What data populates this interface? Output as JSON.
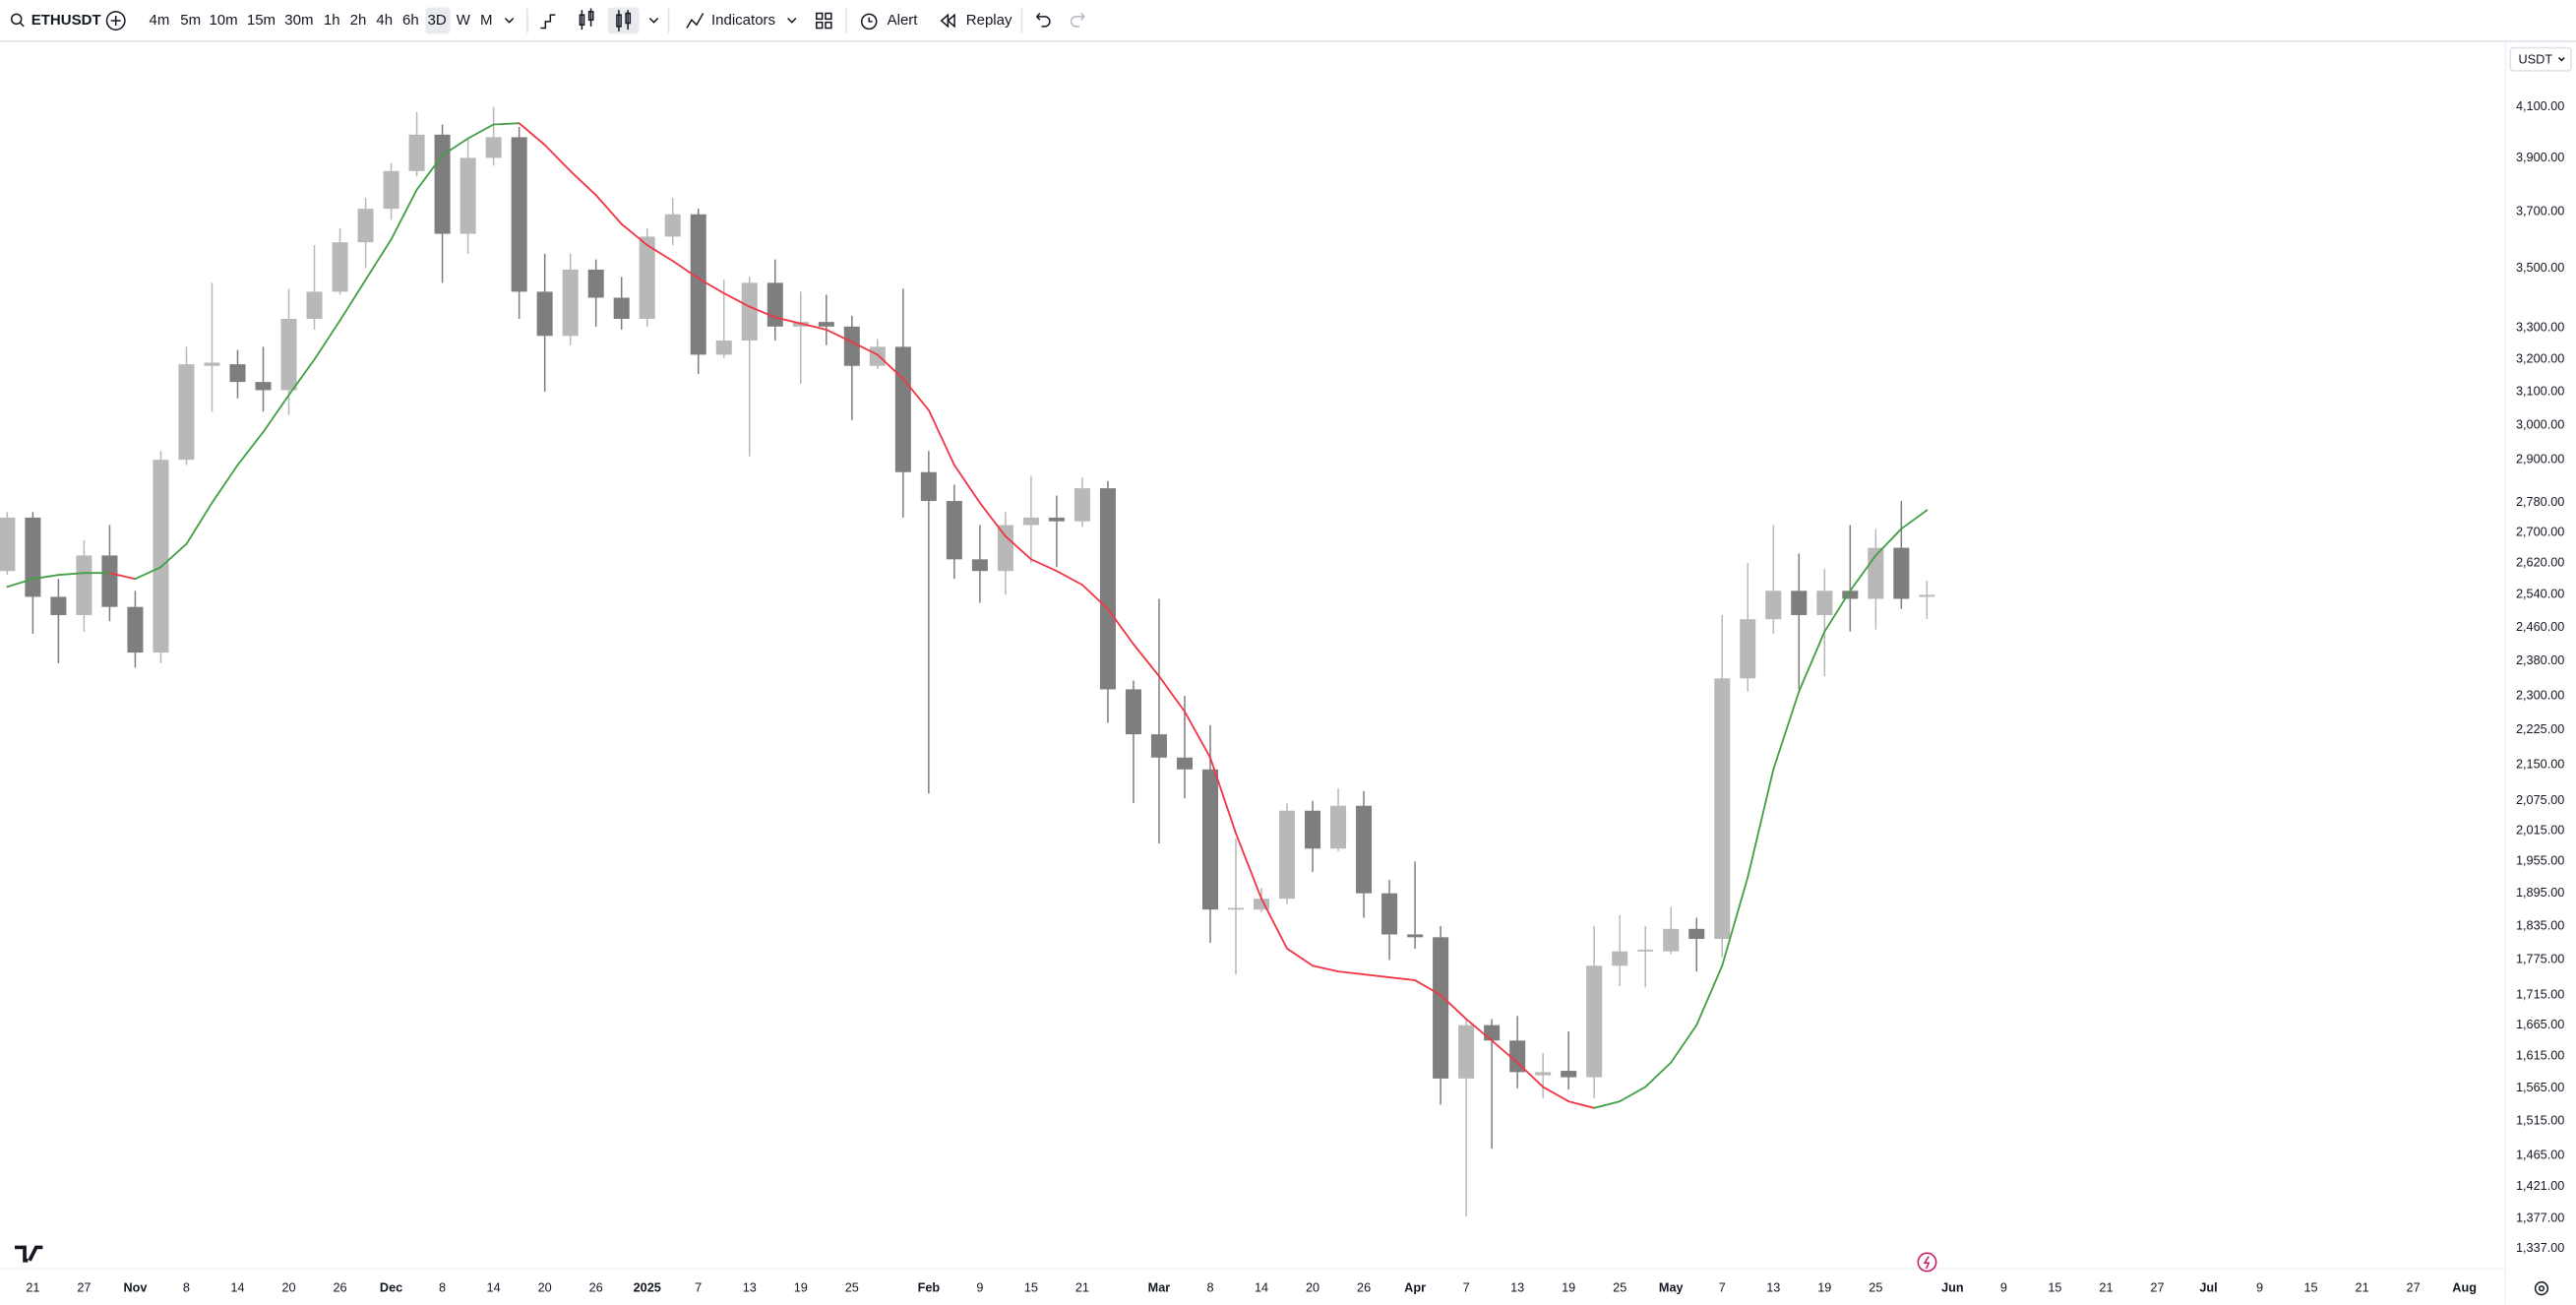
{
  "toolbar": {
    "symbol": "ETHUSDT",
    "intervals": [
      "4m",
      "5m",
      "10m",
      "15m",
      "30m",
      "1h",
      "2h",
      "4h",
      "6h",
      "3D",
      "W",
      "M"
    ],
    "indicators": "Indicators",
    "alert": "Alert",
    "replay": "Replay"
  },
  "currency": "USDT",
  "chart_data": {
    "type": "candlestick",
    "log_scale": true,
    "grid": false,
    "up_color": "#b8b8b8",
    "down_color": "#7e7e7e",
    "ma_up_color": "#43a047",
    "ma_down_color": "#f23645",
    "ylim": [
      1311,
      4352
    ],
    "yticks": [
      {
        "value": 4100,
        "label": "4,100.00"
      },
      {
        "value": 3900,
        "label": "3,900.00"
      },
      {
        "value": 3700,
        "label": "3,700.00"
      },
      {
        "value": 3500,
        "label": "3,500.00"
      },
      {
        "value": 3300,
        "label": "3,300.00"
      },
      {
        "value": 3200,
        "label": "3,200.00"
      },
      {
        "value": 3100,
        "label": "3,100.00"
      },
      {
        "value": 3000,
        "label": "3,000.00"
      },
      {
        "value": 2900,
        "label": "2,900.00"
      },
      {
        "value": 2780,
        "label": "2,780.00"
      },
      {
        "value": 2700,
        "label": "2,700.00"
      },
      {
        "value": 2620,
        "label": "2,620.00"
      },
      {
        "value": 2540,
        "label": "2,540.00"
      },
      {
        "value": 2460,
        "label": "2,460.00"
      },
      {
        "value": 2380,
        "label": "2,380.00"
      },
      {
        "value": 2300,
        "label": "2,300.00"
      },
      {
        "value": 2225,
        "label": "2,225.00"
      },
      {
        "value": 2150,
        "label": "2,150.00"
      },
      {
        "value": 2075,
        "label": "2,075.00"
      },
      {
        "value": 2015,
        "label": "2,015.00"
      },
      {
        "value": 1955,
        "label": "1,955.00"
      },
      {
        "value": 1895,
        "label": "1,895.00"
      },
      {
        "value": 1835,
        "label": "1,835.00"
      },
      {
        "value": 1775,
        "label": "1,775.00"
      },
      {
        "value": 1715,
        "label": "1,715.00"
      },
      {
        "value": 1665,
        "label": "1,665.00"
      },
      {
        "value": 1615,
        "label": "1,615.00"
      },
      {
        "value": 1565,
        "label": "1,565.00"
      },
      {
        "value": 1515,
        "label": "1,515.00"
      },
      {
        "value": 1465,
        "label": "1,465.00"
      },
      {
        "value": 1421,
        "label": "1,421.00"
      },
      {
        "value": 1377,
        "label": "1,377.00"
      },
      {
        "value": 1337,
        "label": "1,337.00"
      }
    ],
    "categories": [
      null,
      "21",
      null,
      "27",
      null,
      "Nov",
      null,
      "8",
      null,
      "14",
      null,
      "20",
      null,
      "26",
      null,
      "Dec",
      null,
      "8",
      null,
      "14",
      null,
      "20",
      null,
      "26",
      null,
      "2025",
      null,
      "7",
      null,
      "13",
      null,
      "19",
      null,
      "25",
      null,
      null,
      "Feb",
      null,
      "9",
      null,
      "15",
      null,
      "21",
      null,
      null,
      "Mar",
      null,
      "8",
      null,
      "14",
      null,
      "20",
      null,
      "26",
      null,
      "Apr",
      null,
      "7",
      null,
      "13",
      null,
      "19",
      null,
      "25",
      null,
      "May",
      null,
      "7",
      null,
      "13",
      null,
      "19",
      null,
      "25",
      null,
      null,
      "Jun",
      null,
      "9",
      null,
      "15",
      null,
      "21",
      null,
      "27",
      null,
      "Jul",
      null,
      "9",
      null,
      "15",
      null,
      "21",
      null,
      "27",
      null,
      "Aug"
    ],
    "open": [
      2600,
      2740,
      2535,
      2490,
      2640,
      2510,
      2400,
      2900,
      3180,
      3185,
      3130,
      3105,
      3330,
      3420,
      3590,
      3710,
      3850,
      3990,
      3620,
      3900,
      3980,
      3420,
      3275,
      3495,
      3400,
      3330,
      3610,
      3690,
      3215,
      3260,
      3450,
      3305,
      3320,
      3305,
      3180,
      3240,
      2865,
      2785,
      2630,
      2600,
      2720,
      2740,
      2730,
      2820,
      2315,
      2215,
      2165,
      2140,
      1865,
      1865,
      1885,
      2055,
      1980,
      2065,
      1895,
      1820,
      1815,
      1580,
      1665,
      1640,
      1585,
      1592,
      1582,
      1765,
      1790,
      1790,
      1830,
      1812,
      2340,
      2480,
      2550,
      2490,
      2550,
      2530,
      2660,
      2535,
      null,
      null,
      null,
      null,
      null,
      null,
      null,
      null,
      null,
      null,
      null,
      null,
      null,
      null,
      null,
      null,
      null,
      null,
      null,
      null,
      null
    ],
    "high": [
      2755,
      2755,
      2580,
      2680,
      2720,
      2550,
      2925,
      3240,
      3450,
      3230,
      3240,
      3430,
      3580,
      3640,
      3750,
      3880,
      4080,
      4030,
      3970,
      4100,
      4020,
      3550,
      3550,
      3530,
      3470,
      3640,
      3750,
      3710,
      3460,
      3470,
      3530,
      3420,
      3410,
      3340,
      3265,
      3430,
      2925,
      2830,
      2720,
      2755,
      2855,
      2800,
      2850,
      2840,
      2335,
      2530,
      2300,
      2235,
      2000,
      1905,
      2070,
      2075,
      2100,
      2095,
      1920,
      1955,
      1835,
      1675,
      1675,
      1680,
      1620,
      1655,
      1835,
      1855,
      1835,
      1870,
      1850,
      2490,
      2620,
      2720,
      2645,
      2605,
      2720,
      2710,
      2785,
      2575,
      null,
      null,
      null,
      null,
      null,
      null,
      null,
      null,
      null,
      null,
      null,
      null,
      null,
      null,
      null,
      null,
      null,
      null,
      null,
      null,
      null
    ],
    "low": [
      2590,
      2445,
      2375,
      2450,
      2475,
      2365,
      2375,
      2885,
      3040,
      3080,
      3040,
      3030,
      3295,
      3410,
      3500,
      3670,
      3830,
      3450,
      3550,
      3870,
      3330,
      3100,
      3245,
      3305,
      3295,
      3305,
      3580,
      3155,
      3205,
      2910,
      3260,
      3125,
      3245,
      3015,
      3170,
      2740,
      2090,
      2580,
      2520,
      2540,
      2620,
      2610,
      2715,
      2240,
      2070,
      1990,
      2080,
      1805,
      1750,
      1860,
      1875,
      1935,
      1975,
      1850,
      1775,
      1795,
      1540,
      1380,
      1475,
      1565,
      1550,
      1563,
      1550,
      1730,
      1728,
      1785,
      1755,
      1780,
      2310,
      2445,
      2315,
      2345,
      2450,
      2455,
      2505,
      2480,
      null,
      null,
      null,
      null,
      null,
      null,
      null,
      null,
      null,
      null,
      null,
      null,
      null,
      null,
      null,
      null,
      null,
      null,
      null,
      null,
      null
    ],
    "close": [
      2740,
      2535,
      2490,
      2640,
      2510,
      2400,
      2900,
      3185,
      3190,
      3130,
      3105,
      3330,
      3420,
      3590,
      3710,
      3850,
      3990,
      3620,
      3900,
      3980,
      3420,
      3275,
      3495,
      3400,
      3330,
      3610,
      3690,
      3215,
      3260,
      3450,
      3305,
      3320,
      3305,
      3180,
      3240,
      2865,
      2785,
      2630,
      2600,
      2720,
      2740,
      2730,
      2820,
      2315,
      2215,
      2165,
      2140,
      1865,
      1868,
      1885,
      2055,
      1980,
      2065,
      1895,
      1820,
      1815,
      1580,
      1665,
      1640,
      1590,
      1590,
      1582,
      1765,
      1790,
      1793,
      1830,
      1812,
      2340,
      2480,
      2550,
      2490,
      2550,
      2530,
      2660,
      2530,
      2540,
      null,
      null,
      null,
      null,
      null,
      null,
      null,
      null,
      null,
      null,
      null,
      null,
      null,
      null,
      null,
      null,
      null,
      null,
      null,
      null,
      null
    ],
    "ma": [
      2560,
      2580,
      2590,
      2595,
      2595,
      2580,
      2610,
      2670,
      2780,
      2885,
      2980,
      3090,
      3200,
      3325,
      3460,
      3600,
      3780,
      3910,
      3975,
      4030,
      4035,
      3950,
      3850,
      3760,
      3655,
      3580,
      3525,
      3465,
      3415,
      3370,
      3335,
      3315,
      3295,
      3255,
      3215,
      3140,
      3045,
      2885,
      2780,
      2690,
      2630,
      2600,
      2565,
      2505,
      2420,
      2345,
      2265,
      2165,
      2010,
      1885,
      1795,
      1765,
      1755,
      1750,
      1745,
      1740,
      1715,
      1675,
      1640,
      1605,
      1567,
      1545,
      1535,
      1545,
      1567,
      1605,
      1665,
      1765,
      1925,
      2140,
      2310,
      2450,
      2550,
      2640,
      2710,
      2760,
      null,
      null,
      null,
      null,
      null,
      null,
      null,
      null,
      null,
      null,
      null,
      null,
      null,
      null,
      null,
      null,
      null,
      null,
      null,
      null,
      null
    ]
  }
}
